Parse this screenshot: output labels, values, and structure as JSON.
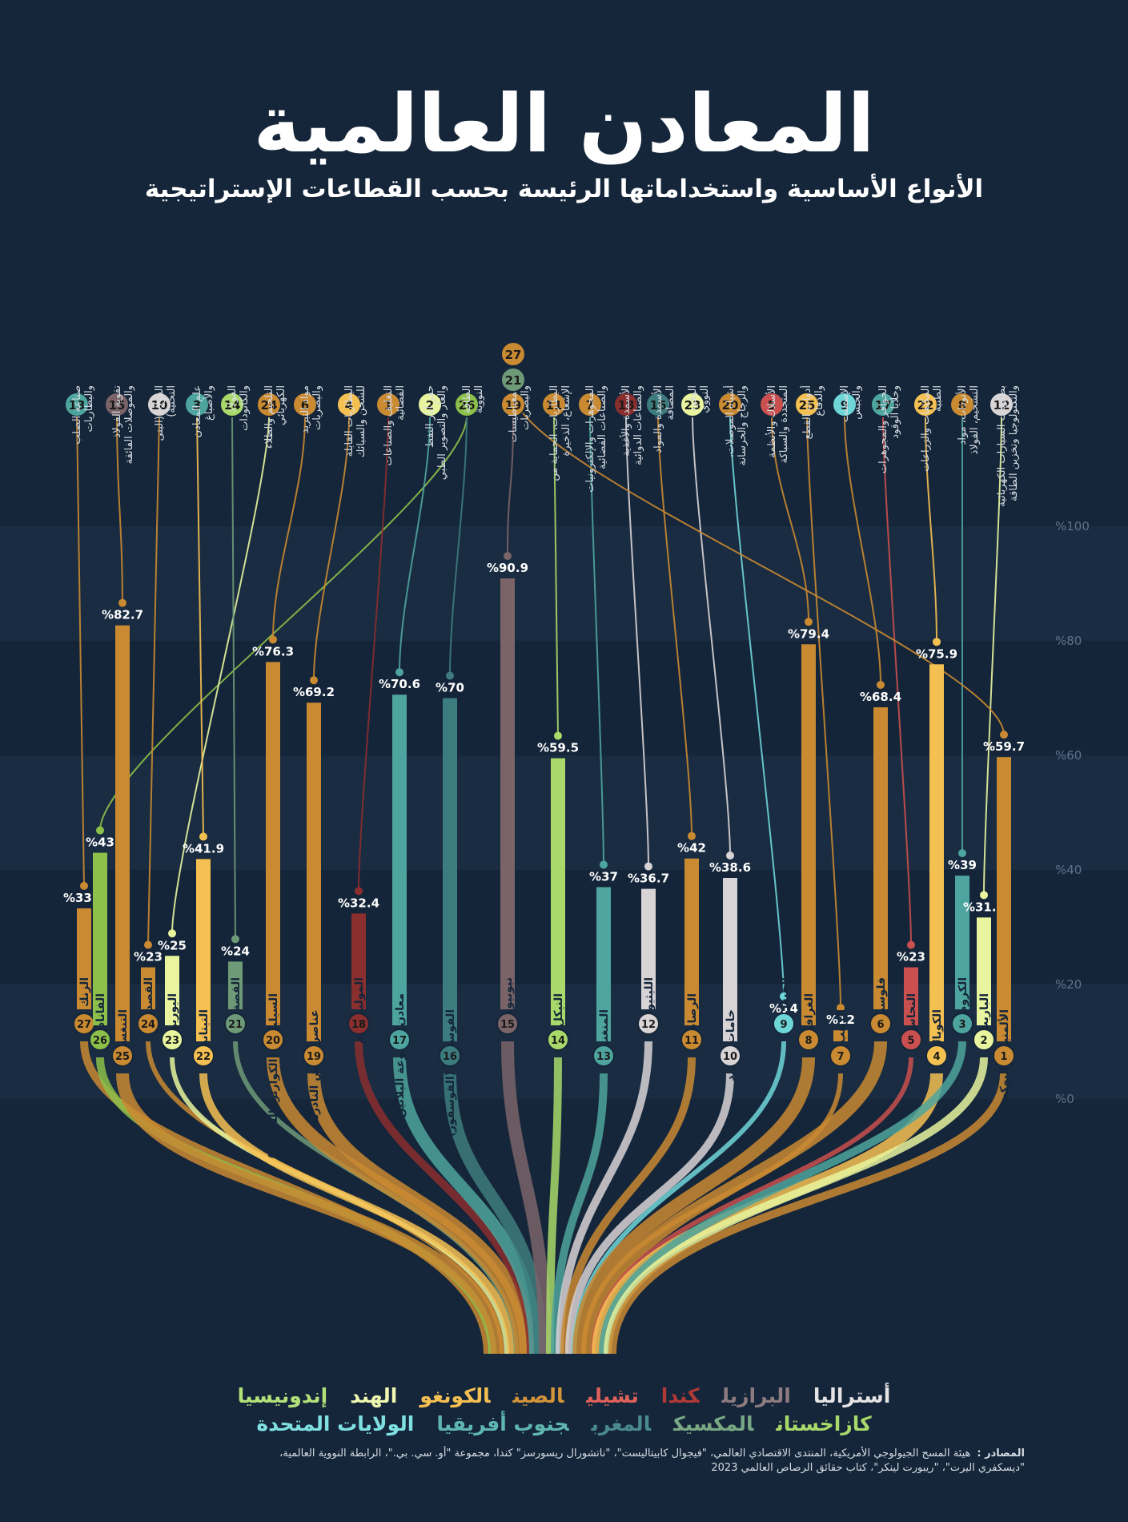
{
  "title": "المعادن العالمية",
  "subtitle": "الأنواع الأساسية واستخداماتها الرئيسة بحسب القطاعات الإستراتيجية",
  "colors": {
    "background": "#15263a",
    "band_alt": "#1b2d42"
  },
  "chart_data": {
    "type": "bar",
    "title": "المعادن العالمية",
    "subtitle": "الأنواع الأساسية واستخداماتها الرئيسة بحسب القطاعات الإستراتيجية",
    "ylim": [
      0,
      100
    ],
    "yticks": [
      "%0",
      "%20",
      "%40",
      "%60",
      "%80",
      "%100"
    ],
    "minerals": [
      {
        "num": 27,
        "name": "الزنك",
        "pct": 33.3,
        "label": "%33.3",
        "use": 13,
        "color": "#c98a32",
        "country": "الصين"
      },
      {
        "num": 26,
        "name": "الفاناديوم",
        "pct": 43,
        "label": "%43",
        "use": 26,
        "color": "#8cc04a",
        "country": "الصين"
      },
      {
        "num": 25,
        "name": "التنغستن",
        "pct": 82.7,
        "label": "%82.7",
        "use": 15,
        "color": "#c98a32",
        "country": "الصين"
      },
      {
        "num": 24,
        "name": "القصدير",
        "pct": 23,
        "label": "%23",
        "use": 10,
        "color": "#c98a32",
        "country": "الصين"
      },
      {
        "num": 23,
        "name": "اليوريوم",
        "pct": 25,
        "label": "%25",
        "use": 24,
        "color": "#e8f59e",
        "country": "كازاخستان"
      },
      {
        "num": 22,
        "name": "التيتانيوم",
        "pct": 41.9,
        "label": "%41.9",
        "use": 3,
        "color": "#f5c052",
        "country": "الصين"
      },
      {
        "num": 21,
        "name": "الفضة",
        "pct": 24,
        "label": "%24",
        "use": 14,
        "color": "#6e9a78",
        "country": "المكسيك"
      },
      {
        "num": 20,
        "name": "السيليكون (الكوارتز/ السيليكا)",
        "pct": 76.3,
        "label": "%76.3",
        "use": 6,
        "color": "#c98a32",
        "country": "الصين"
      },
      {
        "num": 19,
        "name": "عناصر الأرض النادرة",
        "pct": 69.2,
        "label": "%69.2",
        "use": 4,
        "color": "#c98a32",
        "country": "الصين"
      },
      {
        "num": 18,
        "name": "الموليبدنيوم",
        "pct": 32.4,
        "label": "%32.4",
        "use": 1,
        "color": "#8a2e2e",
        "country": "تشيلي"
      },
      {
        "num": 17,
        "name": "معادن مجموعة البلاتين",
        "pct": 70.6,
        "label": "%70.6",
        "use": 2,
        "color": "#4ea49e",
        "country": "جنوب أفريقيا"
      },
      {
        "num": 16,
        "name": "الفوسفات (الفوسفور)",
        "pct": 70,
        "label": "%70",
        "use": 26,
        "color": "#3d7c7e",
        "country": "المغرب"
      },
      {
        "num": 15,
        "name": "نيوبيوم",
        "pct": 90.9,
        "label": "%90.9",
        "use": 19,
        "color": "#7a6468",
        "country": "البرازيل"
      },
      {
        "num": 14,
        "name": "النيكل",
        "pct": 59.5,
        "label": "%59.5",
        "use": 11,
        "color": "#a8d96a",
        "country": "إندونيسيا"
      },
      {
        "num": 13,
        "name": "المنغنيز",
        "pct": 37,
        "label": "%37",
        "use": 7,
        "color": "#4ea49e",
        "country": "جنوب أفريقيا"
      },
      {
        "num": 12,
        "name": "الليثيوم",
        "pct": 36.7,
        "label": "%36.7",
        "use": 18,
        "color": "#d8d4d6",
        "country": "أستراليا"
      },
      {
        "num": 11,
        "name": "الرصاص",
        "pct": 42,
        "label": "%42",
        "use": 16,
        "color": "#c98a32",
        "country": "الصين"
      },
      {
        "num": 10,
        "name": "خامات الحديد",
        "pct": 38.6,
        "label": "%38.6",
        "use": 23,
        "color": "#d8d4d6",
        "country": "أستراليا"
      },
      {
        "num": 9,
        "name": "الجبس",
        "pct": 14,
        "label": "%14",
        "use": 20,
        "color": "#6fd6d8",
        "country": "الولايات المتحدة"
      },
      {
        "num": 8,
        "name": "الغرافيت",
        "pct": 79.4,
        "label": "%79.4",
        "use": 5,
        "color": "#c98a32",
        "country": "الصين"
      },
      {
        "num": 7,
        "name": "الذهب",
        "pct": 12,
        "label": "%12",
        "use": 25,
        "color": "#c98a32",
        "country": "الصين"
      },
      {
        "num": 6,
        "name": "فلوسبار",
        "pct": 68.4,
        "label": "%68.4",
        "use": 9,
        "color": "#c98a32",
        "country": "الصين"
      },
      {
        "num": 5,
        "name": "النحاس",
        "pct": 23,
        "label": "%23",
        "use": 17,
        "color": "#c9504e",
        "country": "تشيلي"
      },
      {
        "num": 4,
        "name": "الكوبالت",
        "pct": 75.9,
        "label": "%75.9",
        "use": 22,
        "color": "#f5c052",
        "country": "الكونغو"
      },
      {
        "num": 3,
        "name": "الكروم",
        "pct": 39,
        "label": "%39",
        "use": 8,
        "color": "#4ea49e",
        "country": "جنوب أفريقيا"
      },
      {
        "num": 2,
        "name": "الباريت",
        "pct": 31.7,
        "label": "%31.7",
        "use": 12,
        "color": "#e8f59e",
        "country": "الهند"
      },
      {
        "num": 1,
        "name": "الألمنيوم (البوكسيت)",
        "pct": 59.7,
        "label": "%59.7",
        "use": 21,
        "color": "#c98a32",
        "country": "الصين"
      }
    ],
    "uses": [
      {
        "num": 13,
        "label": "صناعة الصلب والبطاريات",
        "color": "#4ea49e"
      },
      {
        "num": 15,
        "label": "تقوية الفولاذ والموصلات الفائقة",
        "color": "#7a6468"
      },
      {
        "num": 10,
        "label": "الفولاذ (البنى التحتية)",
        "color": "#d8d4d6"
      },
      {
        "num": 3,
        "label": "علم المعادن والأصباغ",
        "color": "#4ea49e"
      },
      {
        "num": 14,
        "label": "الفولاذ والكاثودات",
        "color": "#a8d96a"
      },
      {
        "num": 24,
        "label": "التلحيم والطلاء الكهربائي",
        "color": "#c98a32"
      },
      {
        "num": 6,
        "label": "مواد التبريد والبصريات",
        "color": "#c98a32"
      },
      {
        "num": 4,
        "label": "البطاريات القابلة للشحن والسبائك",
        "color": "#f5c052"
      },
      {
        "num": 1,
        "label": "التغليف والصناعات الفضائية",
        "color": "#c98a32"
      },
      {
        "num": 2,
        "label": "حفر آبار النفط والغاز والتصوير الطبي",
        "color": "#e8f59e"
      },
      {
        "num": 26,
        "label": "الطاقة النووية",
        "color": "#8cc04a"
      },
      {
        "num": 19,
        "label": "المغناطيسات والبصريات",
        "color": "#c98a32"
      },
      {
        "num": 27,
        "label": "",
        "color": "#c98a32"
      },
      {
        "num": 21,
        "label": "",
        "color": "#6e9a78"
      },
      {
        "num": 11,
        "label": "البطاريات، الحماية من الإشعاع، الذخيرة",
        "color": "#c98a32"
      },
      {
        "num": 7,
        "label": "المجوهرات والإلكترونيات والصناعات الفضائية",
        "color": "#c98a32"
      },
      {
        "num": 18,
        "label": "الأسمدة والأغذية والصناعات الدوائية",
        "color": "#8a2e2e"
      },
      {
        "num": 16,
        "label": "الأسمدة والمواد المضافة",
        "color": "#3d7c7e"
      },
      {
        "num": 23,
        "label": "الوقود النووي",
        "color": "#e8f59e"
      },
      {
        "num": 20,
        "label": "أشباه الموصلات، والزجاج والخرسانة",
        "color": "#c98a32"
      },
      {
        "num": 5,
        "label": "الأسلاك والأنظمة المتجددة والسباكة",
        "color": "#c9504e"
      },
      {
        "num": 25,
        "label": "أدوات القطع والدفاع",
        "color": "#f5c052"
      },
      {
        "num": 9,
        "label": "الإسمنت والجبس",
        "color": "#6fd6d8"
      },
      {
        "num": 17,
        "label": "الحوافز والمجوهرات وخلايا الوقود",
        "color": "#4ea49e"
      },
      {
        "num": 22,
        "label": "المكثفات والزراعات الطبية",
        "color": "#f5c052"
      },
      {
        "num": 8,
        "label": "الأنودات، مواد التشحيم، الفولاذ",
        "color": "#c98a32"
      },
      {
        "num": 12,
        "label": "بطاريات السيارات الكهربائية والتكنولوجيا وتخزين الطاقة",
        "color": "#d8d4d6"
      }
    ]
  },
  "legend": {
    "row1": [
      {
        "name": "أستراليا",
        "color": "#e6e3e5"
      },
      {
        "name": "البرازيل",
        "color": "#8e7b80"
      },
      {
        "name": "كندا",
        "color": "#b23a36"
      },
      {
        "name": "تشيلي",
        "color": "#e0605a"
      },
      {
        "name": "الصين",
        "color": "#d4943a"
      },
      {
        "name": "الكونغو",
        "color": "#f5c052"
      },
      {
        "name": "الهند",
        "color": "#f0f7b0"
      },
      {
        "name": "إندونيسيا",
        "color": "#b4e27a"
      }
    ],
    "row2": [
      {
        "name": "كازاخستان",
        "color": "#a8d96a"
      },
      {
        "name": "المكسيك",
        "color": "#79a884"
      },
      {
        "name": "المغرب",
        "color": "#4a8a8c"
      },
      {
        "name": "جنوب أفريقيا",
        "color": "#5fb6b0"
      },
      {
        "name": "الولايات المتحدة",
        "color": "#7fe0e2"
      }
    ]
  },
  "sources": {
    "label": "المصادر :",
    "line1": "هيئة المسح الجيولوجي الأمريكية، المنتدى الاقتصادي العالمي، \"فيجوال كابيتاليست\"، \"ناتشورال ريسورسز\" كندا، مجموعة \"أو. سي. بي.\"، الرابطة النووية العالمية،",
    "line2": "\"ديسكفري اليرت\"، \"ريبورت لينكر\"، كتاب حقائق الرصاص العالمي 2023"
  }
}
